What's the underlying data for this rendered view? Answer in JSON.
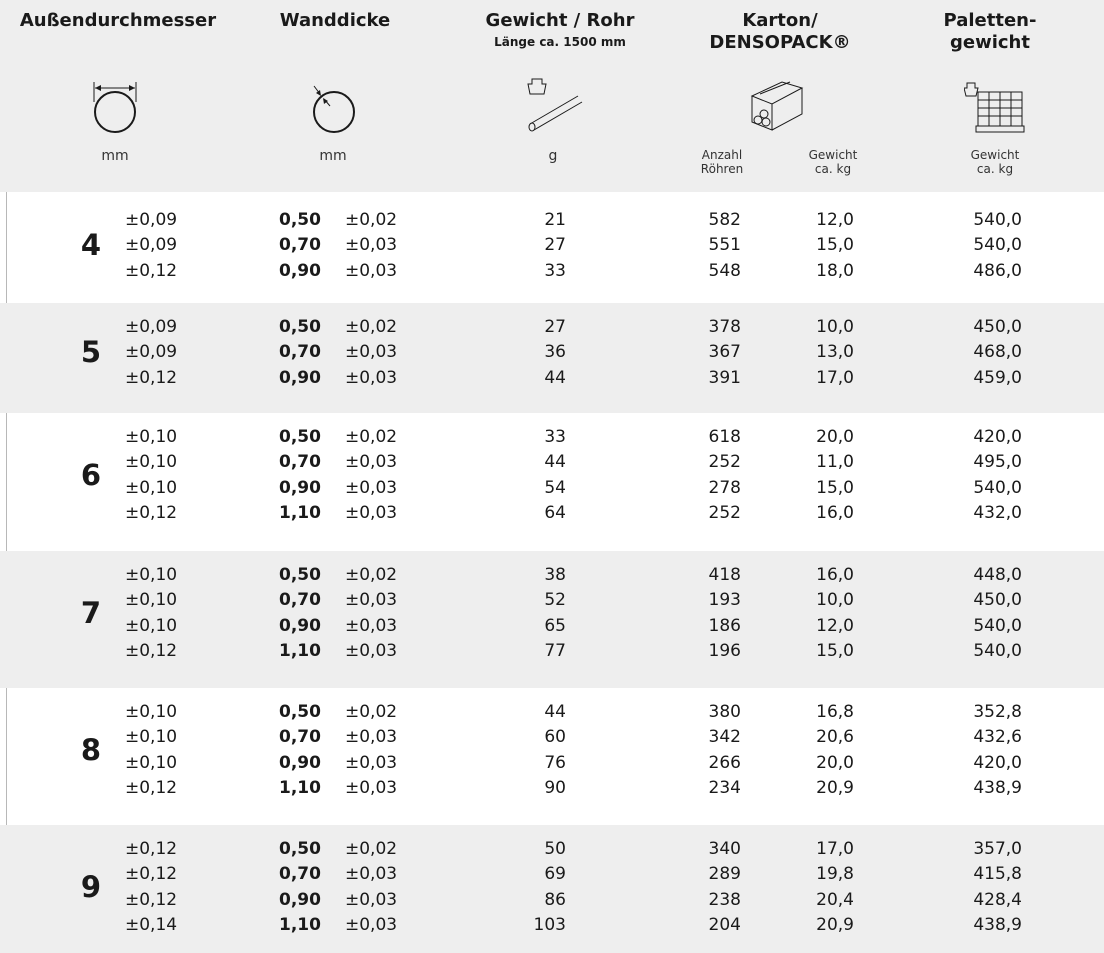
{
  "header": {
    "col_outer_diameter": "Außendurchmesser",
    "col_wall_thickness": "Wanddicke",
    "col_weight_per_tube": "Gewicht / Rohr",
    "col_weight_per_tube_sub": "Länge ca. 1500 mm",
    "col_carton_line1": "Karton/",
    "col_carton_line2": "DENSOPACK®",
    "col_pallet_line1": "Paletten-",
    "col_pallet_line2": "gewicht",
    "unit_outer": "mm",
    "unit_wall": "mm",
    "unit_weight": "g",
    "unit_count_line1": "Anzahl",
    "unit_count_line2": "Röhren",
    "unit_carton_wt_line1": "Gewicht",
    "unit_carton_wt_line2": "ca. kg",
    "unit_pallet_wt_line1": "Gewicht",
    "unit_pallet_wt_line2": "ca. kg",
    "icons": [
      "outer-diameter-icon",
      "wall-thickness-icon",
      "tube-weight-icon",
      "carton-icon",
      "pallet-icon"
    ]
  },
  "groups": [
    {
      "diameter": "4",
      "rows": [
        {
          "tol_outer": "±0,09",
          "wall": "0,50",
          "tol_wall": "±0,02",
          "weight": "21",
          "count": "582",
          "carton_kg": "12,0",
          "pallet_kg": "540,0"
        },
        {
          "tol_outer": "±0,09",
          "wall": "0,70",
          "tol_wall": "±0,03",
          "weight": "27",
          "count": "551",
          "carton_kg": "15,0",
          "pallet_kg": "540,0"
        },
        {
          "tol_outer": "±0,12",
          "wall": "0,90",
          "tol_wall": "±0,03",
          "weight": "33",
          "count": "548",
          "carton_kg": "18,0",
          "pallet_kg": "486,0"
        }
      ]
    },
    {
      "diameter": "5",
      "rows": [
        {
          "tol_outer": "±0,09",
          "wall": "0,50",
          "tol_wall": "±0,02",
          "weight": "27",
          "count": "378",
          "carton_kg": "10,0",
          "pallet_kg": "450,0"
        },
        {
          "tol_outer": "±0,09",
          "wall": "0,70",
          "tol_wall": "±0,03",
          "weight": "36",
          "count": "367",
          "carton_kg": "13,0",
          "pallet_kg": "468,0"
        },
        {
          "tol_outer": "±0,12",
          "wall": "0,90",
          "tol_wall": "±0,03",
          "weight": "44",
          "count": "391",
          "carton_kg": "17,0",
          "pallet_kg": "459,0"
        }
      ]
    },
    {
      "diameter": "6",
      "rows": [
        {
          "tol_outer": "±0,10",
          "wall": "0,50",
          "tol_wall": "±0,02",
          "weight": "33",
          "count": "618",
          "carton_kg": "20,0",
          "pallet_kg": "420,0"
        },
        {
          "tol_outer": "±0,10",
          "wall": "0,70",
          "tol_wall": "±0,03",
          "weight": "44",
          "count": "252",
          "carton_kg": "11,0",
          "pallet_kg": "495,0"
        },
        {
          "tol_outer": "±0,10",
          "wall": "0,90",
          "tol_wall": "±0,03",
          "weight": "54",
          "count": "278",
          "carton_kg": "15,0",
          "pallet_kg": "540,0"
        },
        {
          "tol_outer": "±0,12",
          "wall": "1,10",
          "tol_wall": "±0,03",
          "weight": "64",
          "count": "252",
          "carton_kg": "16,0",
          "pallet_kg": "432,0"
        }
      ]
    },
    {
      "diameter": "7",
      "rows": [
        {
          "tol_outer": "±0,10",
          "wall": "0,50",
          "tol_wall": "±0,02",
          "weight": "38",
          "count": "418",
          "carton_kg": "16,0",
          "pallet_kg": "448,0"
        },
        {
          "tol_outer": "±0,10",
          "wall": "0,70",
          "tol_wall": "±0,03",
          "weight": "52",
          "count": "193",
          "carton_kg": "10,0",
          "pallet_kg": "450,0"
        },
        {
          "tol_outer": "±0,10",
          "wall": "0,90",
          "tol_wall": "±0,03",
          "weight": "65",
          "count": "186",
          "carton_kg": "12,0",
          "pallet_kg": "540,0"
        },
        {
          "tol_outer": "±0,12",
          "wall": "1,10",
          "tol_wall": "±0,03",
          "weight": "77",
          "count": "196",
          "carton_kg": "15,0",
          "pallet_kg": "540,0"
        }
      ]
    },
    {
      "diameter": "8",
      "rows": [
        {
          "tol_outer": "±0,10",
          "wall": "0,50",
          "tol_wall": "±0,02",
          "weight": "44",
          "count": "380",
          "carton_kg": "16,8",
          "pallet_kg": "352,8"
        },
        {
          "tol_outer": "±0,10",
          "wall": "0,70",
          "tol_wall": "±0,03",
          "weight": "60",
          "count": "342",
          "carton_kg": "20,6",
          "pallet_kg": "432,6"
        },
        {
          "tol_outer": "±0,10",
          "wall": "0,90",
          "tol_wall": "±0,03",
          "weight": "76",
          "count": "266",
          "carton_kg": "20,0",
          "pallet_kg": "420,0"
        },
        {
          "tol_outer": "±0,12",
          "wall": "1,10",
          "tol_wall": "±0,03",
          "weight": "90",
          "count": "234",
          "carton_kg": "20,9",
          "pallet_kg": "438,9"
        }
      ]
    },
    {
      "diameter": "9",
      "rows": [
        {
          "tol_outer": "±0,12",
          "wall": "0,50",
          "tol_wall": "±0,02",
          "weight": "50",
          "count": "340",
          "carton_kg": "17,0",
          "pallet_kg": "357,0"
        },
        {
          "tol_outer": "±0,12",
          "wall": "0,70",
          "tol_wall": "±0,03",
          "weight": "69",
          "count": "289",
          "carton_kg": "19,8",
          "pallet_kg": "415,8"
        },
        {
          "tol_outer": "±0,12",
          "wall": "0,90",
          "tol_wall": "±0,03",
          "weight": "86",
          "count": "238",
          "carton_kg": "20,4",
          "pallet_kg": "428,4"
        },
        {
          "tol_outer": "±0,14",
          "wall": "1,10",
          "tol_wall": "±0,03",
          "weight": "103",
          "count": "204",
          "carton_kg": "20,9",
          "pallet_kg": "438,9"
        }
      ]
    }
  ]
}
